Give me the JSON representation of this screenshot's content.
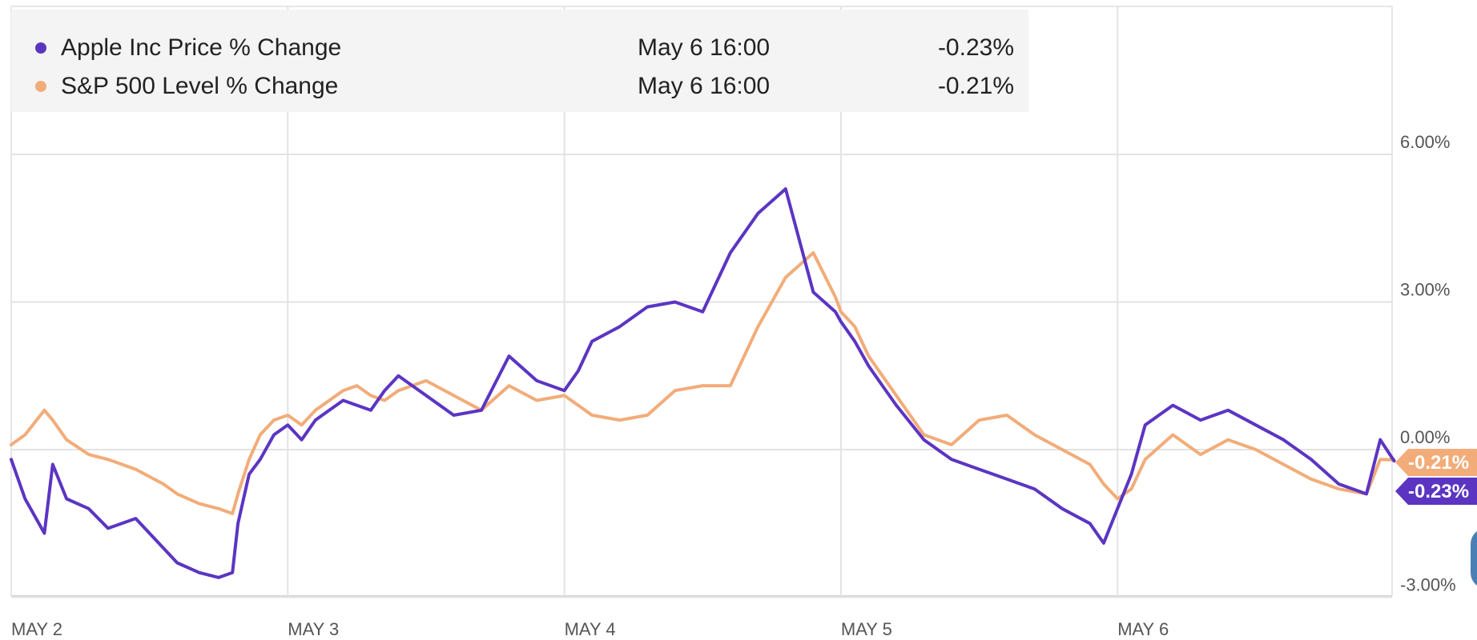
{
  "legend": {
    "items": [
      {
        "label": "Apple Inc Price % Change",
        "time": "May 6 16:00",
        "value": "-0.23%",
        "color": "#5b35c2"
      },
      {
        "label": "S&P 500 Level % Change",
        "time": "May 6 16:00",
        "value": "-0.21%",
        "color": "#f2ac79"
      }
    ]
  },
  "chart_data": {
    "type": "line",
    "x_ticks": [
      "MAY 2",
      "MAY 3",
      "MAY 4",
      "MAY 5",
      "MAY 6"
    ],
    "y_ticks": [
      6,
      3,
      0,
      -3
    ],
    "y_tick_labels": [
      "6.00%",
      "3.00%",
      "0.00%",
      "-3.00%"
    ],
    "ylim": [
      -3.0,
      8.5
    ],
    "xlim": [
      0,
      5
    ],
    "grid": true,
    "legend_position": "top-left",
    "series": [
      {
        "name": "Apple Inc Price % Change",
        "color": "#5b35c2",
        "end_label": "-0.23%",
        "x": [
          0,
          0.05,
          0.12,
          0.15,
          0.2,
          0.28,
          0.35,
          0.45,
          0.55,
          0.6,
          0.68,
          0.75,
          0.8,
          0.82,
          0.86,
          0.9,
          0.95,
          1.0,
          1.05,
          1.1,
          1.15,
          1.2,
          1.25,
          1.3,
          1.35,
          1.4,
          1.5,
          1.6,
          1.7,
          1.8,
          1.9,
          2.0,
          2.05,
          2.1,
          2.2,
          2.3,
          2.4,
          2.5,
          2.6,
          2.7,
          2.8,
          2.9,
          2.98,
          3.0,
          3.05,
          3.1,
          3.15,
          3.2,
          3.3,
          3.4,
          3.5,
          3.6,
          3.7,
          3.8,
          3.9,
          3.95,
          4.0,
          4.05,
          4.1,
          4.2,
          4.3,
          4.4,
          4.5,
          4.6,
          4.7,
          4.8,
          4.9,
          4.95,
          5.0
        ],
        "y": [
          -0.2,
          -1.0,
          -1.7,
          -0.3,
          -1.0,
          -1.2,
          -1.6,
          -1.4,
          -2.0,
          -2.3,
          -2.5,
          -2.6,
          -2.5,
          -1.5,
          -0.5,
          -0.2,
          0.3,
          0.5,
          0.2,
          0.6,
          0.8,
          1.0,
          0.9,
          0.8,
          1.2,
          1.5,
          1.1,
          0.7,
          0.8,
          1.9,
          1.4,
          1.2,
          1.6,
          2.2,
          2.5,
          2.9,
          3.0,
          2.8,
          4.0,
          4.8,
          5.3,
          3.2,
          2.8,
          2.6,
          2.2,
          1.7,
          1.3,
          0.9,
          0.2,
          -0.2,
          -0.4,
          -0.6,
          -0.8,
          -1.2,
          -1.5,
          -1.9,
          -1.2,
          -0.5,
          0.5,
          0.9,
          0.6,
          0.8,
          0.5,
          0.2,
          -0.2,
          -0.7,
          -0.9,
          0.2,
          -0.23
        ]
      },
      {
        "name": "S&P 500 Level % Change",
        "color": "#f2ac79",
        "end_label": "-0.21%",
        "x": [
          0,
          0.05,
          0.12,
          0.15,
          0.2,
          0.28,
          0.35,
          0.45,
          0.55,
          0.6,
          0.68,
          0.75,
          0.8,
          0.82,
          0.86,
          0.9,
          0.95,
          1.0,
          1.05,
          1.1,
          1.15,
          1.2,
          1.25,
          1.3,
          1.35,
          1.4,
          1.5,
          1.6,
          1.7,
          1.8,
          1.9,
          2.0,
          2.05,
          2.1,
          2.2,
          2.3,
          2.4,
          2.5,
          2.6,
          2.7,
          2.8,
          2.9,
          2.98,
          3.0,
          3.05,
          3.1,
          3.15,
          3.2,
          3.3,
          3.4,
          3.5,
          3.6,
          3.7,
          3.8,
          3.9,
          3.95,
          4.0,
          4.05,
          4.1,
          4.2,
          4.3,
          4.4,
          4.5,
          4.6,
          4.7,
          4.8,
          4.9,
          4.95,
          5.0
        ],
        "y": [
          0.1,
          0.3,
          0.8,
          0.6,
          0.2,
          -0.1,
          -0.2,
          -0.4,
          -0.7,
          -0.9,
          -1.1,
          -1.2,
          -1.3,
          -0.9,
          -0.2,
          0.3,
          0.6,
          0.7,
          0.5,
          0.8,
          1.0,
          1.2,
          1.3,
          1.1,
          1.0,
          1.2,
          1.4,
          1.1,
          0.8,
          1.3,
          1.0,
          1.1,
          0.9,
          0.7,
          0.6,
          0.7,
          1.2,
          1.3,
          1.3,
          2.5,
          3.5,
          4.0,
          3.1,
          2.8,
          2.5,
          1.9,
          1.5,
          1.1,
          0.3,
          0.1,
          0.6,
          0.7,
          0.3,
          0.0,
          -0.3,
          -0.7,
          -1.0,
          -0.8,
          -0.2,
          0.3,
          -0.1,
          0.2,
          0.0,
          -0.3,
          -0.6,
          -0.8,
          -0.9,
          -0.2,
          -0.21
        ]
      }
    ]
  }
}
